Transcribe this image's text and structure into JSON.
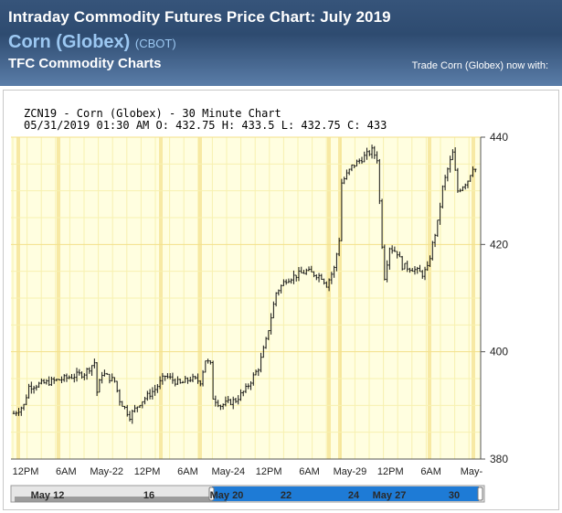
{
  "header": {
    "title": "Intraday Commodity Futures Price Chart: July 2019",
    "product": "Corn (Globex)",
    "exchange": "(CBOT)",
    "site": "TFC Commodity Charts",
    "trade_link": "Trade Corn (Globex) now with:"
  },
  "chart_head": {
    "line1": "ZCN19 - Corn (Globex) - 30 Minute Chart",
    "line2": "05/31/2019 01:30 AM O: 432.75 H: 433.5 L: 432.75 C: 433"
  },
  "colors": {
    "plot_bg": "#fffee0",
    "grid_light": "#f7f1b0",
    "grid_strong": "#f3e08a",
    "bar": "#111111",
    "nav_blue": "#1e7bd6",
    "nav_gray": "#8a8a8a"
  },
  "navigator": {
    "labels": [
      "May 12",
      "16",
      "May 20",
      "22",
      "24",
      "May 27",
      "30"
    ]
  },
  "chart_data": {
    "type": "ohlc",
    "title": "ZCN19 - Corn (Globex) - 30 Minute Chart",
    "ylim": [
      380,
      440
    ],
    "yticks": [
      380,
      400,
      420,
      440
    ],
    "x_ticks": [
      "12PM",
      "6AM",
      "May-22",
      "12PM",
      "6AM",
      "May-24",
      "12PM",
      "6AM",
      "May-29",
      "12PM",
      "6AM",
      "May-"
    ],
    "grid": true,
    "close_path": [
      [
        0,
        388.5
      ],
      [
        4,
        390
      ],
      [
        6,
        393.5
      ],
      [
        20,
        395
      ],
      [
        28,
        396
      ],
      [
        32,
        398
      ],
      [
        33,
        392.5
      ],
      [
        35,
        396
      ],
      [
        40,
        394.5
      ],
      [
        42,
        391
      ],
      [
        46,
        388
      ],
      [
        50,
        390.5
      ],
      [
        56,
        393
      ],
      [
        60,
        395.5
      ],
      [
        66,
        394
      ],
      [
        70,
        395
      ],
      [
        74,
        394.5
      ],
      [
        76,
        398.5
      ],
      [
        78,
        397.5
      ],
      [
        79,
        391.5
      ],
      [
        82,
        390
      ],
      [
        88,
        391
      ],
      [
        92,
        393
      ],
      [
        97,
        397
      ],
      [
        100,
        402
      ],
      [
        104,
        411
      ],
      [
        108,
        413.5
      ],
      [
        116,
        415
      ],
      [
        122,
        414
      ],
      [
        124,
        412.5
      ],
      [
        127,
        415.5
      ],
      [
        129,
        421
      ],
      [
        130,
        431.5
      ],
      [
        134,
        434.5
      ],
      [
        138,
        436
      ],
      [
        142,
        437.5
      ],
      [
        144,
        436
      ],
      [
        146,
        420
      ],
      [
        147,
        414
      ],
      [
        149,
        419.5
      ],
      [
        152,
        418.5
      ],
      [
        154,
        416
      ],
      [
        158,
        415.5
      ],
      [
        162,
        414.5
      ],
      [
        164,
        415.5
      ],
      [
        166,
        420
      ],
      [
        168,
        424
      ],
      [
        170,
        430.5
      ],
      [
        172,
        434
      ],
      [
        174,
        437
      ],
      [
        176,
        430
      ],
      [
        180,
        432
      ],
      [
        182,
        434.5
      ],
      [
        183,
        434
      ]
    ]
  }
}
